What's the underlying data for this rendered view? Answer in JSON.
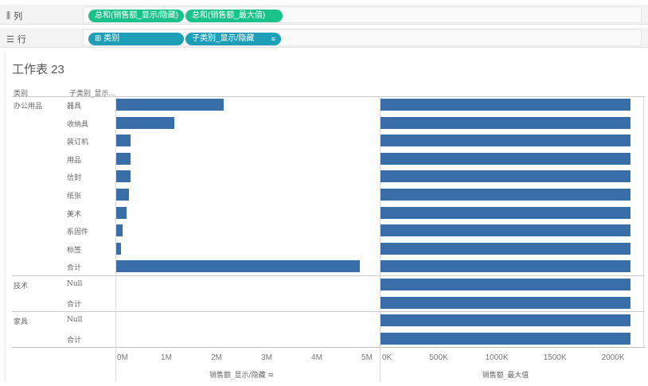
{
  "shelves": {
    "columns": {
      "label": "列",
      "icon": "column-shelf-icon",
      "pills": [
        {
          "label": "总和(销售额_显示/隐藏)"
        },
        {
          "label": "总和(销售额_最大值)"
        }
      ]
    },
    "rows": {
      "label": "行",
      "icon": "row-shelf-icon",
      "pills": [
        {
          "label": "⊞ 类别"
        },
        {
          "label": "子类别_显示/隐藏"
        }
      ]
    }
  },
  "worksheet": {
    "title": "工作表 23",
    "headers": {
      "category": "类别",
      "subcategory": "子类别_显示..."
    }
  },
  "colors": {
    "bar": "#3a6ea8",
    "pill_green": "#19c28a",
    "pill_teal": "#1e9fb8"
  },
  "chart_data": [
    {
      "type": "bar",
      "orientation": "horizontal",
      "xlabel": "销售额_显示/隐藏",
      "xlim": [
        0,
        5000000
      ],
      "x_tick_labels": [
        "0M",
        "1M",
        "2M",
        "3M",
        "4M",
        "5M"
      ],
      "groups": [
        {
          "category": "办公用品",
          "rows": [
            {
              "subcategory": "器具",
              "value": 2150000
            },
            {
              "subcategory": "收纳具",
              "value": 1160000
            },
            {
              "subcategory": "装订机",
              "value": 290000
            },
            {
              "subcategory": "用品",
              "value": 280000
            },
            {
              "subcategory": "信封",
              "value": 280000
            },
            {
              "subcategory": "纸张",
              "value": 260000
            },
            {
              "subcategory": "美术",
              "value": 200000
            },
            {
              "subcategory": "系固件",
              "value": 120000
            },
            {
              "subcategory": "标签",
              "value": 100000
            },
            {
              "subcategory": "合计",
              "value": 4850000
            }
          ]
        },
        {
          "category": "技术",
          "rows": [
            {
              "subcategory": "Null",
              "value": 0
            },
            {
              "subcategory": "合计",
              "value": 0
            }
          ]
        },
        {
          "category": "家具",
          "rows": [
            {
              "subcategory": "Null",
              "value": 0
            },
            {
              "subcategory": "合计",
              "value": 0
            }
          ]
        }
      ]
    },
    {
      "type": "bar",
      "orientation": "horizontal",
      "xlabel": "销售额_最大值",
      "xlim": [
        0,
        2150000
      ],
      "x_tick_labels": [
        "0K",
        "500K",
        "1000K",
        "1500K",
        "2000K"
      ],
      "x_tick_values": [
        0,
        500000,
        1000000,
        1500000,
        2000000
      ],
      "values": [
        2150000,
        2150000,
        2150000,
        2150000,
        2150000,
        2150000,
        2150000,
        2150000,
        2150000,
        2150000,
        2150000,
        2150000,
        2150000,
        2150000
      ]
    }
  ]
}
